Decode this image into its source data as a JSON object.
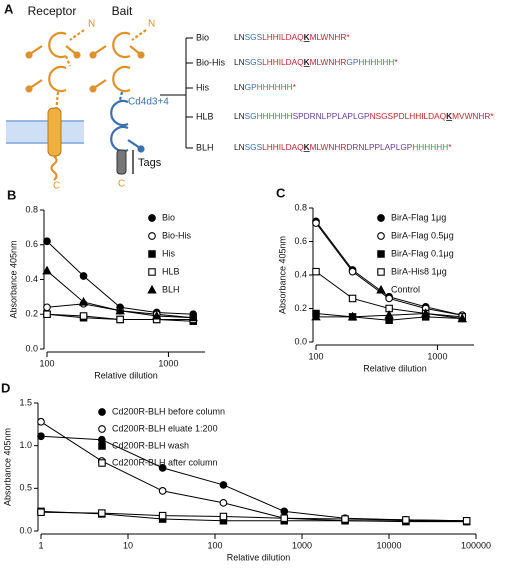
{
  "diagram": {
    "panel": "A",
    "receptor_label": "Receptor",
    "bait_label": "Bait",
    "n_label": "N",
    "c_label": "C",
    "domain_label": "Cd4d3+4",
    "tags_label": "Tags",
    "constructs": [
      {
        "name": "Bio",
        "segments": [
          {
            "text": "LN",
            "color": "#222222"
          },
          {
            "text": "SGS",
            "color": "#3a6fb0"
          },
          {
            "text": "LHHILDAQ",
            "color": "#c0282d"
          },
          {
            "text": "K",
            "color": "#222222",
            "bold": true
          },
          {
            "text": "MLWNHR",
            "color": "#c0282d"
          },
          {
            "text": "*",
            "color": "#c0282d"
          }
        ]
      },
      {
        "name": "Bio-His",
        "segments": [
          {
            "text": "LN",
            "color": "#222222"
          },
          {
            "text": "SGS",
            "color": "#3a6fb0"
          },
          {
            "text": "LHHILDAQ",
            "color": "#c0282d"
          },
          {
            "text": "K",
            "color": "#222222",
            "bold": true
          },
          {
            "text": "MLWNHR",
            "color": "#c0282d"
          },
          {
            "text": "GP",
            "color": "#3a6fb0"
          },
          {
            "text": "HHHHHH",
            "color": "#3a9a3a"
          },
          {
            "text": "*",
            "color": "#c0282d"
          }
        ]
      },
      {
        "name": "His",
        "segments": [
          {
            "text": "LN",
            "color": "#222222"
          },
          {
            "text": "GP",
            "color": "#3a6fb0"
          },
          {
            "text": "HHHHHH",
            "color": "#3a9a3a"
          },
          {
            "text": "*",
            "color": "#c0282d"
          }
        ]
      },
      {
        "name": "HLB",
        "segments": [
          {
            "text": "LN",
            "color": "#222222"
          },
          {
            "text": "SG",
            "color": "#3a6fb0"
          },
          {
            "text": "HHHHHH",
            "color": "#3a9a3a"
          },
          {
            "text": "SPDRNLPPLAPLGP",
            "color": "#6a3d9a"
          },
          {
            "text": "NSGSPDLHHILDAQ",
            "color": "#c0282d"
          },
          {
            "text": "K",
            "color": "#222222",
            "bold": true
          },
          {
            "text": "MVWNHR",
            "color": "#c0282d"
          },
          {
            "text": "*",
            "color": "#c0282d"
          }
        ]
      },
      {
        "name": "BLH",
        "segments": [
          {
            "text": "LN",
            "color": "#222222"
          },
          {
            "text": "SGS",
            "color": "#3a6fb0"
          },
          {
            "text": "LHHILDAQ",
            "color": "#c0282d"
          },
          {
            "text": "K",
            "color": "#222222",
            "bold": true
          },
          {
            "text": "MLWNHR",
            "color": "#c0282d"
          },
          {
            "text": "DRNLPPLAPLGP",
            "color": "#6a3d9a"
          },
          {
            "text": "HHHHHH",
            "color": "#3a9a3a"
          },
          {
            "text": "*",
            "color": "#c0282d"
          }
        ]
      }
    ]
  },
  "chart_data": [
    {
      "type": "line",
      "panel": "B",
      "x_label": "Relative dilution",
      "y_label": "Absorbance 405nm",
      "log_x": true,
      "legend": "upper right",
      "x": [
        100,
        200,
        400,
        800,
        1600
      ],
      "xlim": [
        100,
        2000
      ],
      "xticks": [
        100,
        1000
      ],
      "ylim": [
        0,
        0.8
      ],
      "yticks": [
        {
          "value": 0,
          "label": "0.0"
        },
        0.2,
        0.4,
        0.6,
        0.8
      ],
      "series": [
        {
          "name": "Bio",
          "color": "#000000",
          "marker": "circle-filled",
          "values": [
            0.62,
            0.42,
            0.24,
            0.21,
            0.2
          ]
        },
        {
          "name": "Bio-His",
          "color": "#000000",
          "marker": "circle-open",
          "values": [
            0.24,
            0.26,
            0.22,
            0.2,
            0.18
          ]
        },
        {
          "name": "His",
          "color": "#000000",
          "marker": "square-filled",
          "values": [
            0.2,
            0.18,
            0.17,
            0.17,
            0.16
          ]
        },
        {
          "name": "HLB",
          "color": "#000000",
          "marker": "square-open",
          "values": [
            0.2,
            0.19,
            0.17,
            0.17,
            0.17
          ]
        },
        {
          "name": "BLH",
          "color": "#000000",
          "marker": "triangle-filled",
          "values": [
            0.45,
            0.27,
            0.22,
            0.19,
            0.18
          ]
        }
      ]
    },
    {
      "type": "line",
      "panel": "C",
      "x_label": "Relative dilution",
      "y_label": "Absorbance 405nm",
      "log_x": true,
      "legend": "upper right",
      "x": [
        100,
        200,
        400,
        800,
        1600
      ],
      "xlim": [
        100,
        2000
      ],
      "xticks": [
        100,
        1000
      ],
      "ylim": [
        0,
        0.8
      ],
      "yticks": [
        {
          "value": 0,
          "label": "0.0"
        },
        0.2,
        0.4,
        0.6,
        0.8
      ],
      "series": [
        {
          "name": "BirA-Flag 1μg",
          "color": "#000000",
          "marker": "circle-filled",
          "values": [
            0.72,
            0.43,
            0.27,
            0.21,
            0.16
          ]
        },
        {
          "name": "BirA-Flag 0.5μg",
          "color": "#000000",
          "marker": "circle-open",
          "values": [
            0.71,
            0.42,
            0.26,
            0.2,
            0.16
          ]
        },
        {
          "name": "BirA-Flag 0.1μg",
          "color": "#000000",
          "marker": "square-filled",
          "values": [
            0.17,
            0.15,
            0.13,
            0.15,
            0.14
          ]
        },
        {
          "name": "BirA-His8 1μg",
          "color": "#000000",
          "marker": "square-open",
          "values": [
            0.42,
            0.26,
            0.2,
            0.17,
            0.15
          ]
        },
        {
          "name": "Control",
          "color": "#000000",
          "marker": "triangle-filled",
          "values": [
            0.15,
            0.15,
            0.16,
            0.17,
            0.14
          ]
        }
      ]
    },
    {
      "type": "line",
      "panel": "D",
      "x_label": "Relative dilution",
      "y_label": "Absorbance 405nm",
      "log_x": true,
      "legend": "upper right",
      "x": [
        1,
        5,
        25,
        125,
        625,
        3125,
        15625,
        78125
      ],
      "xlim": [
        1,
        100000
      ],
      "xticks": [
        1,
        10,
        100,
        1000,
        10000,
        100000
      ],
      "ylim": [
        0,
        1.5
      ],
      "yticks": [
        {
          "value": 0,
          "label": "0.0"
        },
        0.5,
        {
          "value": 1,
          "label": "1.0"
        },
        1.5
      ],
      "series": [
        {
          "name": "Cd200R-BLH before column",
          "color": "#000000",
          "marker": "circle-filled",
          "values": [
            1.11,
            1.07,
            0.74,
            0.54,
            0.23,
            0.15,
            0.13,
            0.12
          ]
        },
        {
          "name": "Cd200R-BLH eluate 1:200",
          "color": "#000000",
          "marker": "circle-open",
          "values": [
            1.28,
            0.82,
            0.47,
            0.33,
            0.15,
            0.12,
            0.12,
            0.11
          ]
        },
        {
          "name": "Cd200R-BLH wash",
          "color": "#000000",
          "marker": "square-filled",
          "values": [
            0.23,
            0.2,
            0.14,
            0.12,
            0.12,
            0.12,
            0.11,
            0.11
          ]
        },
        {
          "name": "Cd200R-BLH after column",
          "color": "#000000",
          "marker": "square-open",
          "values": [
            0.22,
            0.21,
            0.18,
            0.17,
            0.15,
            0.14,
            0.13,
            0.12
          ]
        }
      ]
    }
  ]
}
